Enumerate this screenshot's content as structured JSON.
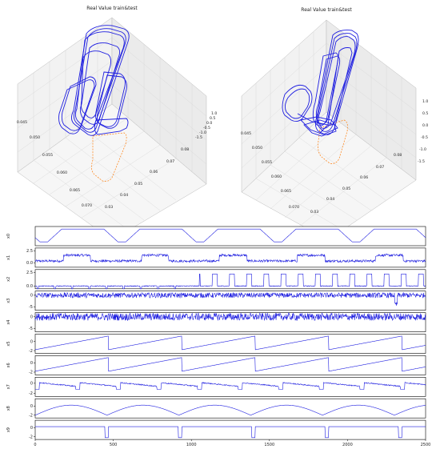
{
  "panels3d": [
    {
      "title": "Real Value train&test",
      "left_axis_ticks": [
        "0.045",
        "0.050",
        "0.055",
        "0.060",
        "0.065",
        "0.070"
      ],
      "bottom_axis_ticks": [
        "0.03",
        "0.04",
        "0.05",
        "0.06",
        "0.07",
        "0.08"
      ],
      "vertical_axis_ticks": [
        "1.0",
        "0.5",
        "0.0",
        "-0.5",
        "-1.0",
        "-1.5"
      ]
    },
    {
      "title": "Real Value train&test",
      "left_axis_ticks": [
        "0.045",
        "0.050",
        "0.055",
        "0.060",
        "0.065",
        "0.070"
      ],
      "bottom_axis_ticks": [
        "0.03",
        "0.04",
        "0.05",
        "0.06",
        "0.07",
        "0.08"
      ],
      "vertical_axis_ticks": [
        "1.0",
        "0.5",
        "0.0",
        "-0.5",
        "-1.0",
        "-1.5"
      ]
    }
  ],
  "colors": {
    "train": "#1f1fe0",
    "test": "#ff7f0e",
    "axis": "#000000"
  },
  "chart_data": {
    "type": "line",
    "x_range": [
      0,
      2500
    ],
    "x_ticks": [
      0,
      500,
      1000,
      1500,
      2000,
      2500
    ],
    "x_tick_labels": [
      "0",
      "500",
      "1000",
      "1500",
      "2000",
      "2500"
    ],
    "series": [
      {
        "name": "x0",
        "ylim": [
          -0.3,
          1.2
        ],
        "yticks": [],
        "ytick_labels": []
      },
      {
        "name": "x1",
        "ylim": [
          -0.9,
          3.1
        ],
        "yticks": [
          0.0,
          2.5
        ],
        "ytick_labels": [
          "0.0",
          "2.5"
        ]
      },
      {
        "name": "x2",
        "ylim": [
          -0.5,
          3.0
        ],
        "yticks": [
          0.0,
          2.5
        ],
        "ytick_labels": [
          "0.0",
          "2.5"
        ]
      },
      {
        "name": "x3",
        "ylim": [
          -6.5,
          1.8
        ],
        "yticks": [
          0,
          -5
        ],
        "ytick_labels": [
          "0",
          "-5"
        ]
      },
      {
        "name": "x4",
        "ylim": [
          -6.5,
          1.8
        ],
        "yticks": [
          0,
          -5
        ],
        "ytick_labels": [
          "0",
          "-5"
        ]
      },
      {
        "name": "x5",
        "ylim": [
          -2.6,
          1.6
        ],
        "yticks": [
          0,
          -2
        ],
        "ytick_labels": [
          "0",
          "-2"
        ]
      },
      {
        "name": "x6",
        "ylim": [
          -2.6,
          1.6
        ],
        "yticks": [
          0,
          -2
        ],
        "ytick_labels": [
          "0",
          "-2"
        ]
      },
      {
        "name": "x7",
        "ylim": [
          -2.6,
          1.2
        ],
        "yticks": [
          0,
          -2
        ],
        "ytick_labels": [
          "0",
          "-2"
        ]
      },
      {
        "name": "x8",
        "ylim": [
          -2.6,
          1.6
        ],
        "yticks": [
          0,
          -2
        ],
        "ytick_labels": [
          "0",
          "-2"
        ]
      },
      {
        "name": "x9",
        "ylim": [
          -2.6,
          1.6
        ],
        "yticks": [
          0,
          -2
        ],
        "ytick_labels": [
          "0",
          "-2"
        ]
      }
    ]
  }
}
